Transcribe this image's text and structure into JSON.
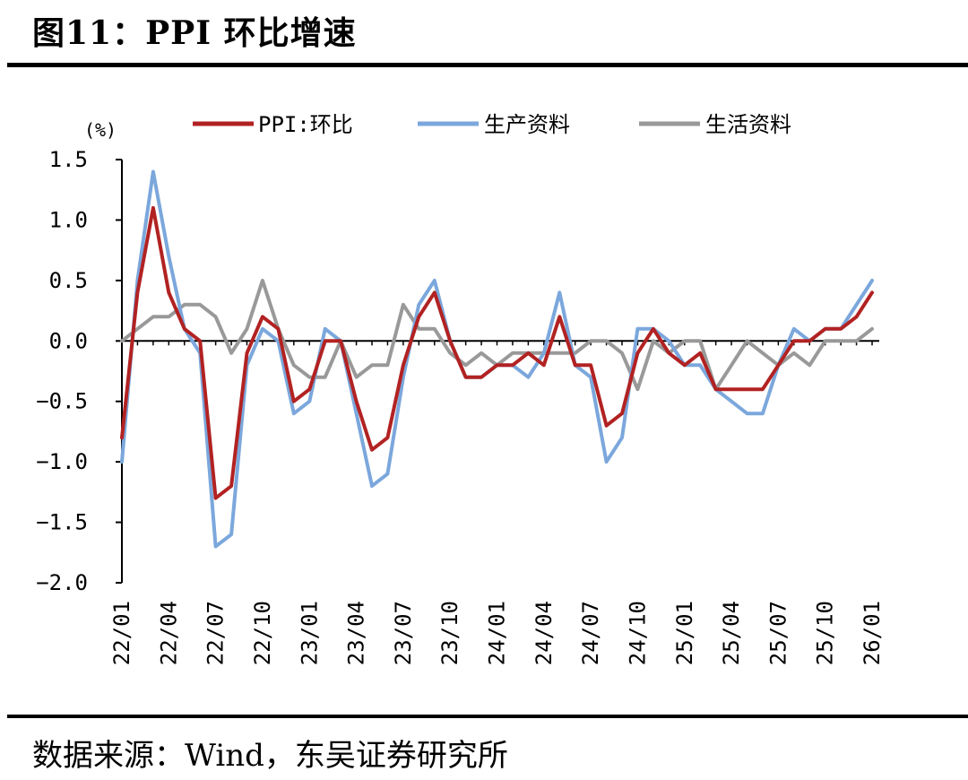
{
  "header": {
    "title": "图11：PPI 环比增速"
  },
  "footer": {
    "source": "数据来源：Wind，东吴证券研究所"
  },
  "colors": {
    "ppi": "#B22222",
    "production": "#7BA7DC",
    "living": "#999999"
  },
  "chart_data": {
    "type": "line",
    "title": "图11：PPI 环比增速",
    "ylabel": "(%)",
    "xlabel": "",
    "ylim": [
      -2.0,
      1.5
    ],
    "yticks": [
      "1.5",
      "1.0",
      "0.5",
      "0.0",
      "−0.5",
      "−1.0",
      "−1.5",
      "−2.0"
    ],
    "ytick_values": [
      1.5,
      1.0,
      0.5,
      0.0,
      -0.5,
      -1.0,
      -1.5,
      -2.0
    ],
    "legend_position": "top",
    "xtick_labels": [
      "22/01",
      "22/04",
      "22/07",
      "22/10",
      "23/01",
      "23/04",
      "23/07",
      "23/10",
      "24/01",
      "24/04",
      "24/07",
      "24/10",
      "25/01",
      "25/04",
      "25/07",
      "25/10",
      "26/01"
    ],
    "xtick_indices": [
      0,
      3,
      6,
      9,
      12,
      15,
      18,
      21,
      24,
      27,
      30,
      33,
      36,
      39,
      42,
      45,
      48
    ],
    "x": [
      "22/01",
      "22/02",
      "22/03",
      "22/04",
      "22/05",
      "22/06",
      "22/07",
      "22/08",
      "22/09",
      "22/10",
      "22/11",
      "22/12",
      "23/01",
      "23/02",
      "23/03",
      "23/04",
      "23/05",
      "23/06",
      "23/07",
      "23/08",
      "23/09",
      "23/10",
      "23/11",
      "23/12",
      "24/01",
      "24/02",
      "24/03",
      "24/04",
      "24/05",
      "24/06",
      "24/07",
      "24/08",
      "24/09",
      "24/10",
      "24/11",
      "24/12",
      "25/01",
      "25/02",
      "25/03",
      "25/04",
      "25/05",
      "25/06",
      "25/07",
      "25/08",
      "25/09",
      "25/10",
      "25/11",
      "25/12",
      "26/01"
    ],
    "series": [
      {
        "name": "PPI:环比",
        "color": "#B22222",
        "values": [
          -0.8,
          0.4,
          1.1,
          0.4,
          0.1,
          0.0,
          -1.3,
          -1.2,
          -0.1,
          0.2,
          0.1,
          -0.5,
          -0.4,
          0.0,
          0.0,
          -0.5,
          -0.9,
          -0.8,
          -0.2,
          0.2,
          0.4,
          0.0,
          -0.3,
          -0.3,
          -0.2,
          -0.2,
          -0.1,
          -0.2,
          0.2,
          -0.2,
          -0.2,
          -0.7,
          -0.6,
          -0.1,
          0.1,
          -0.1,
          -0.2,
          -0.1,
          -0.4,
          -0.4,
          -0.4,
          -0.4,
          -0.2,
          0.0,
          0.0,
          0.1,
          0.1,
          0.2,
          0.4
        ]
      },
      {
        "name": "生产资料",
        "color": "#7BA7DC",
        "values": [
          -1.0,
          0.5,
          1.4,
          0.7,
          0.1,
          -0.1,
          -1.7,
          -1.6,
          -0.2,
          0.1,
          0.0,
          -0.6,
          -0.5,
          0.1,
          0.0,
          -0.6,
          -1.2,
          -1.1,
          -0.3,
          0.3,
          0.5,
          0.0,
          -0.3,
          -0.3,
          -0.2,
          -0.2,
          -0.3,
          -0.1,
          0.4,
          -0.2,
          -0.3,
          -1.0,
          -0.8,
          0.1,
          0.1,
          0.0,
          -0.2,
          -0.2,
          -0.4,
          -0.5,
          -0.6,
          -0.6,
          -0.2,
          0.1,
          0.0,
          0.1,
          0.1,
          0.3,
          0.5
        ]
      },
      {
        "name": "生活资料",
        "color": "#999999",
        "values": [
          0.0,
          0.1,
          0.2,
          0.2,
          0.3,
          0.3,
          0.2,
          -0.1,
          0.1,
          0.5,
          0.1,
          -0.2,
          -0.3,
          -0.3,
          0.0,
          -0.3,
          -0.2,
          -0.2,
          0.3,
          0.1,
          0.1,
          -0.1,
          -0.2,
          -0.1,
          -0.2,
          -0.1,
          -0.1,
          -0.1,
          -0.1,
          -0.1,
          0.0,
          0.0,
          -0.1,
          -0.4,
          0.0,
          -0.1,
          0.0,
          0.0,
          -0.4,
          -0.2,
          0.0,
          -0.1,
          -0.2,
          -0.1,
          -0.2,
          0.0,
          0.0,
          0.0,
          0.1
        ]
      }
    ]
  }
}
